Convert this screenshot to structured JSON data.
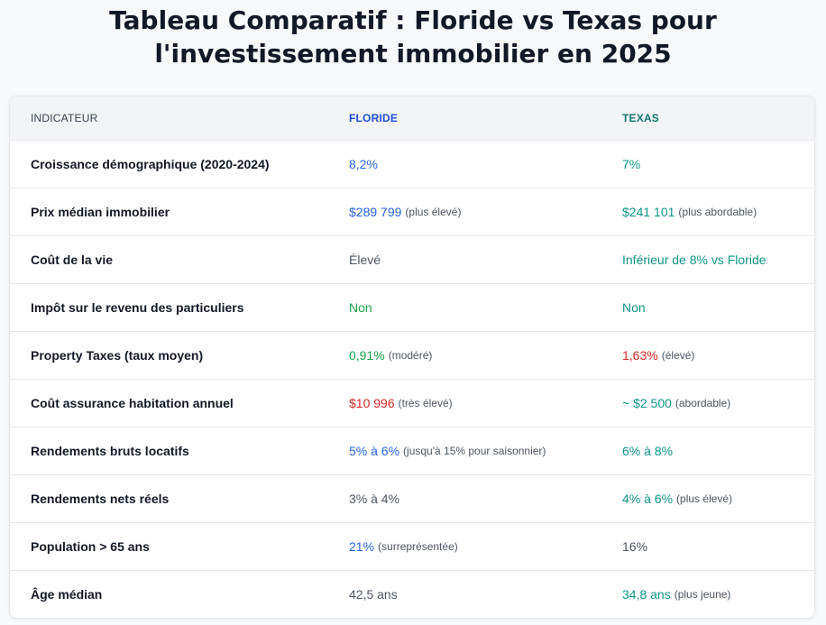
{
  "title": "Tableau Comparatif : Floride vs Texas pour l'investissement immobilier en 2025",
  "colors": {
    "blue": "#2563eb",
    "teal": "#0d9488",
    "green": "#16a34a",
    "red": "#dc2626",
    "gray": "#4b5563"
  },
  "table": {
    "headers": [
      "INDICATEUR",
      "FLORIDE",
      "TEXAS"
    ],
    "rows": [
      {
        "label": "Croissance démographique (2020-2024)",
        "floride": {
          "value": "8,2%",
          "note": "",
          "color": "blue"
        },
        "texas": {
          "value": "7%",
          "note": "",
          "color": "teal"
        }
      },
      {
        "label": "Prix médian immobilier",
        "floride": {
          "value": "$289 799",
          "note": "(plus élevé)",
          "color": "blue"
        },
        "texas": {
          "value": "$241 101",
          "note": "(plus abordable)",
          "color": "teal"
        }
      },
      {
        "label": "Coût de la vie",
        "floride": {
          "value": "Élevé",
          "note": "",
          "color": "gray"
        },
        "texas": {
          "value": "Inférieur de 8% vs Floride",
          "note": "",
          "color": "teal"
        }
      },
      {
        "label": "Impôt sur le revenu des particuliers",
        "floride": {
          "value": "Non",
          "note": "",
          "color": "green"
        },
        "texas": {
          "value": "Non",
          "note": "",
          "color": "teal"
        }
      },
      {
        "label": "Property Taxes (taux moyen)",
        "floride": {
          "value": "0,91%",
          "note": "(modéré)",
          "color": "green"
        },
        "texas": {
          "value": "1,63%",
          "note": "(élevé)",
          "color": "red"
        }
      },
      {
        "label": "Coût assurance habitation annuel",
        "floride": {
          "value": "$10 996",
          "note": "(très élevé)",
          "color": "red"
        },
        "texas": {
          "value": "~ $2 500",
          "note": "(abordable)",
          "color": "teal"
        }
      },
      {
        "label": "Rendements bruts locatifs",
        "floride": {
          "value": "5% à 6%",
          "note": "(jusqu'à 15% pour saisonnier)",
          "color": "blue"
        },
        "texas": {
          "value": "6% à 8%",
          "note": "",
          "color": "teal"
        }
      },
      {
        "label": "Rendements nets réels",
        "floride": {
          "value": "3% à 4%",
          "note": "",
          "color": "gray"
        },
        "texas": {
          "value": "4% à 6%",
          "note": "(plus élevé)",
          "color": "teal"
        }
      },
      {
        "label": "Population > 65 ans",
        "floride": {
          "value": "21%",
          "note": "(surreprésentée)",
          "color": "blue"
        },
        "texas": {
          "value": "16%",
          "note": "",
          "color": "gray"
        }
      },
      {
        "label": "Âge médian",
        "floride": {
          "value": "42,5 ans",
          "note": "",
          "color": "gray"
        },
        "texas": {
          "value": "34,8 ans",
          "note": "(plus jeune)",
          "color": "teal"
        }
      }
    ]
  }
}
